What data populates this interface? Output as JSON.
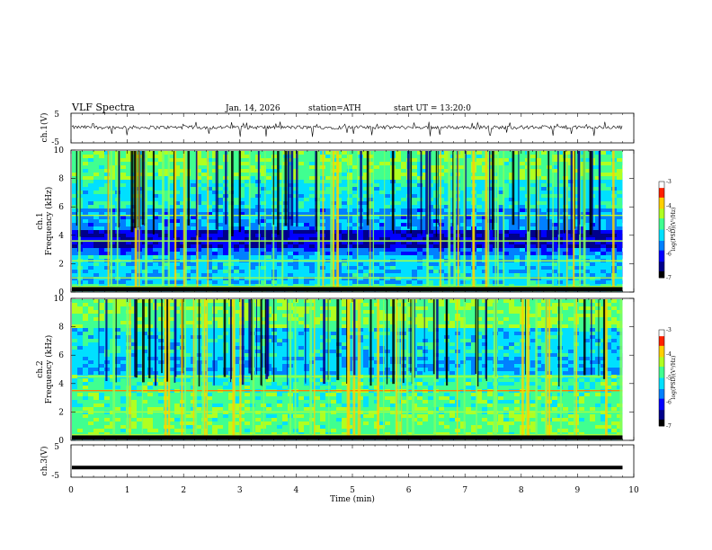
{
  "header": {
    "title": "VLF Spectra",
    "date": "Jan. 14, 2026",
    "station": "station=ATH",
    "start": "start UT = 13:20:0"
  },
  "colors": {
    "colormap": [
      "#000000",
      "#00008b",
      "#0000ff",
      "#0080ff",
      "#00e0ff",
      "#40ff90",
      "#b0ff20",
      "#ffd000",
      "#ff2000",
      "#ffffff"
    ],
    "trace": "#000000",
    "background": "#ffffff"
  },
  "chart_data": [
    {
      "type": "line",
      "panel": "ch1-voltage",
      "ylabel": "ch.1(V)",
      "ylim": [
        -5,
        5
      ],
      "yticks": [
        "5",
        "-5"
      ],
      "x": [
        0,
        1,
        2,
        3,
        4,
        5,
        6,
        7,
        8,
        9,
        9.8
      ],
      "values": [
        0.2,
        0.3,
        0.2,
        0.3,
        0.2,
        0.3,
        0.2,
        0.3,
        0.2,
        0.3,
        0.2
      ],
      "note": "noisy trace near 0 V with spikes to about -2 V"
    },
    {
      "type": "heatmap",
      "panel": "ch1-spectrogram",
      "ylabel": "ch.1\nFrequency (kHz)",
      "ylabel_top": "ch.1",
      "ylabel_bottom": "Frequency (kHz)",
      "ylim": [
        0,
        10
      ],
      "yticks": [
        "0",
        "2",
        "4",
        "6",
        "8",
        "10"
      ],
      "xlim": [
        0,
        9.8
      ],
      "colorbar": {
        "label": "log(PSD)(V²/Hz)",
        "range": [
          -7,
          -3
        ],
        "ticks": [
          "-3",
          "-4",
          "-5",
          "-6",
          "-7"
        ]
      },
      "bands_khz": [
        0.4,
        1.0,
        2.2,
        3.6,
        5.4
      ]
    },
    {
      "type": "heatmap",
      "panel": "ch2-spectrogram",
      "ylabel": "ch.2\nFrequency (kHz)",
      "ylabel_top": "ch.2",
      "ylabel_bottom": "Frequency (kHz)",
      "ylim": [
        0,
        10
      ],
      "yticks": [
        "0",
        "2",
        "4",
        "6",
        "8",
        "10"
      ],
      "xlim": [
        0,
        9.8
      ],
      "colorbar": {
        "label": "log(PSD)(V²/Hz)",
        "range": [
          -7,
          -3
        ],
        "ticks": [
          "-3",
          "-4",
          "-5",
          "-6",
          "-7"
        ]
      },
      "bands_khz": [
        0.4,
        2.0,
        3.5,
        4.5
      ]
    },
    {
      "type": "line",
      "panel": "ch3-voltage",
      "ylabel": "ch.3(V)",
      "ylim": [
        -5,
        5
      ],
      "yticks": [
        "5",
        "-5"
      ],
      "x": [
        0,
        9.8
      ],
      "values": [
        -2,
        -2
      ],
      "note": "flat trace at about -2 V"
    }
  ],
  "xaxis": {
    "label": "Time (min)",
    "xlim": [
      0,
      10
    ],
    "ticks": [
      "0",
      "1",
      "2",
      "3",
      "4",
      "5",
      "6",
      "7",
      "8",
      "9",
      "10"
    ]
  }
}
